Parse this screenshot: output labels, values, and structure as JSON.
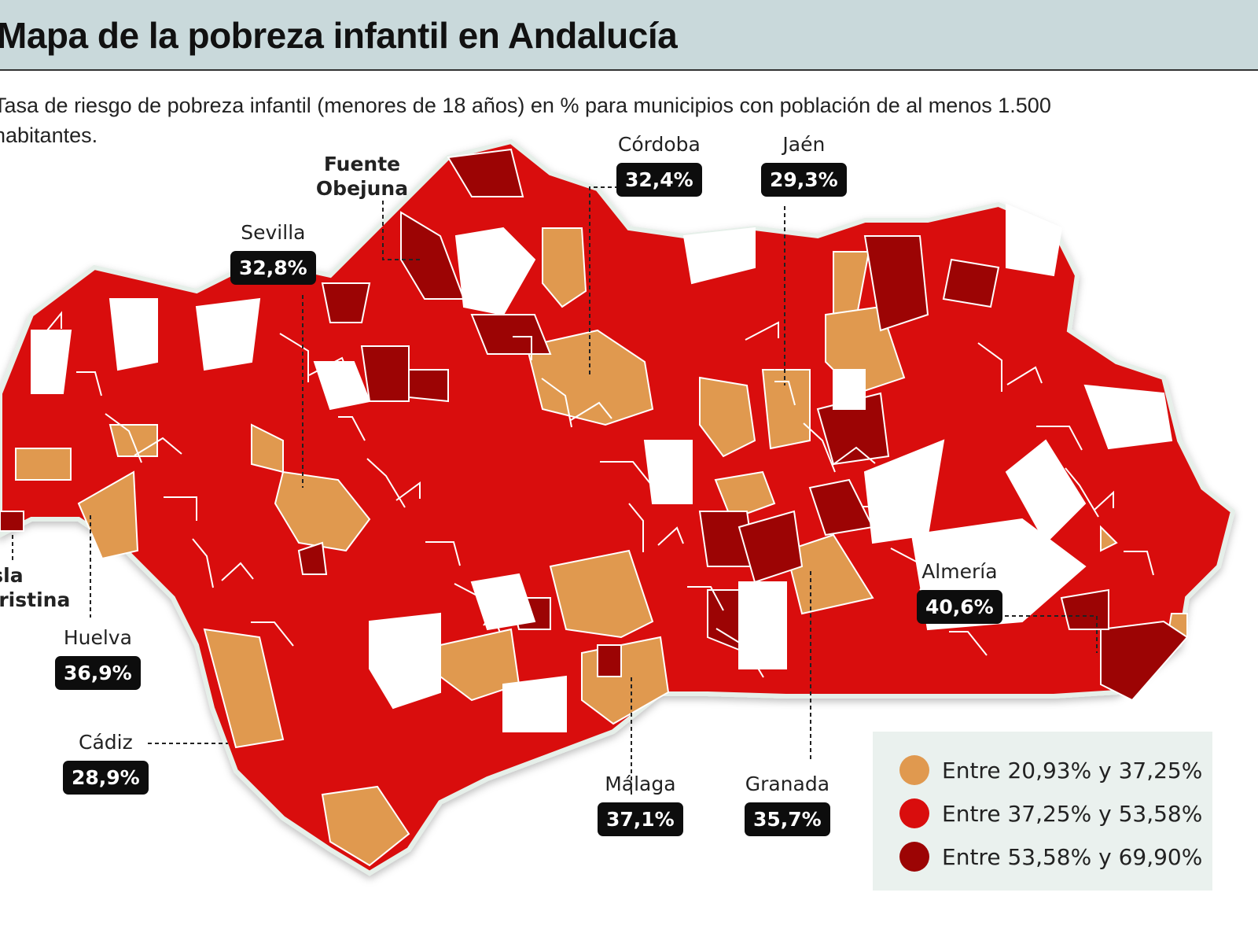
{
  "title": "Mapa de la pobreza infantil en Andalucía",
  "subtitle": "Tasa de riesgo de pobreza infantil (menores de 18 años) en % para municipios con población de al menos 1.500 habitantes.",
  "colors": {
    "low": "#e0994f",
    "mid": "#d90d0d",
    "high": "#9c0404",
    "no_data": "#ffffff",
    "header_bg": "#c9d9db",
    "legend_bg": "#eaf1ee"
  },
  "cities": {
    "isla_cristina": {
      "name": "Isla Cristina"
    },
    "huelva": {
      "name": "Huelva",
      "value": "36,9%"
    },
    "cadiz": {
      "name": "Cádiz",
      "value": "28,9%"
    },
    "sevilla": {
      "name": "Sevilla",
      "value": "32,8%"
    },
    "fuente_obejuna": {
      "name": "Fuente Obejuna"
    },
    "cordoba": {
      "name": "Córdoba",
      "value": "32,4%"
    },
    "jaen": {
      "name": "Jaén",
      "value": "29,3%"
    },
    "malaga": {
      "name": "Málaga",
      "value": "37,1%"
    },
    "granada": {
      "name": "Granada",
      "value": "35,7%"
    },
    "almeria": {
      "name": "Almería",
      "value": "40,6%"
    }
  },
  "legend": [
    {
      "label": "Entre 20,93% y 37,25%",
      "color": "#e0994f"
    },
    {
      "label": "Entre 37,25% y 53,58%",
      "color": "#d90d0d"
    },
    {
      "label": "Entre 53,58% y 69,90%",
      "color": "#9c0404"
    }
  ]
}
